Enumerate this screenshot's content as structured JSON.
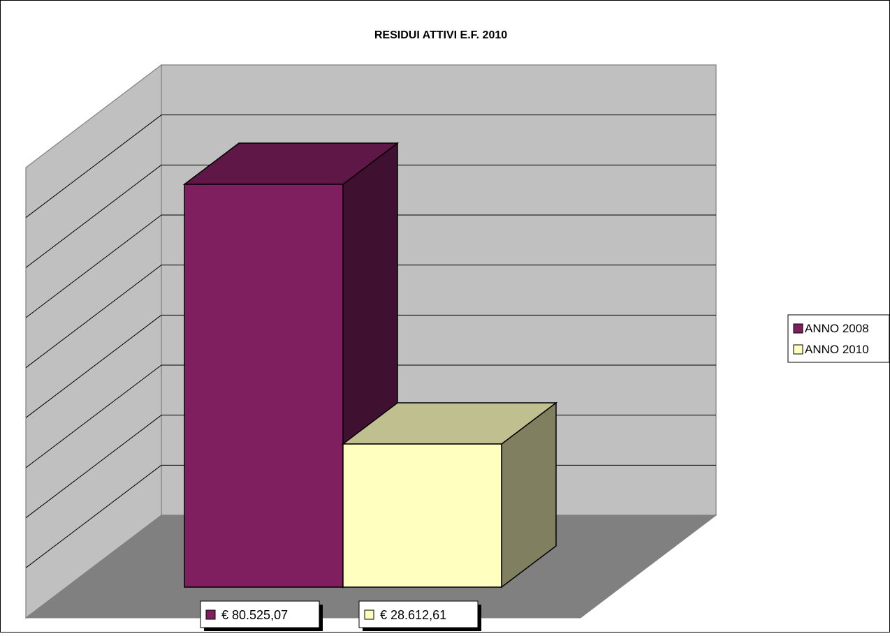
{
  "chart_data": {
    "type": "bar",
    "title": "RESIDUI ATTIVI  E.F. 2010",
    "xlabel": "",
    "ylabel": "",
    "ylim": [
      0,
      90000
    ],
    "grid": true,
    "legend": "right",
    "series": [
      {
        "name": "ANNO 2008",
        "value": 80525.07,
        "label": "€ 80.525,07",
        "color": "#7f1f5f"
      },
      {
        "name": "ANNO 2010",
        "value": 28612.61,
        "label": "€ 28.612,61",
        "color": "#ffffc0"
      }
    ]
  }
}
